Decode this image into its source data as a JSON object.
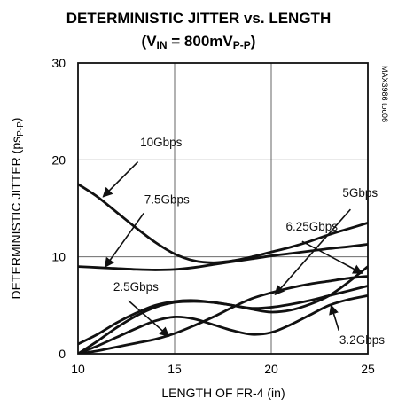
{
  "chart_data": {
    "type": "line",
    "title": "DETERMINISTIC JITTER vs. LENGTH",
    "subtitle": {
      "pre": "(V",
      "sub1": "IN",
      "mid": " = 800mV",
      "sub2": "P-P",
      "post": ")"
    },
    "xlabel": "LENGTH OF FR-4 (in)",
    "ylabel": {
      "pre": "DETERMINISTIC JITTER (ps",
      "sub": "P-P",
      "post": ")"
    },
    "xlim": [
      10,
      25
    ],
    "ylim": [
      0,
      30
    ],
    "xticks": [
      10,
      15,
      20,
      25
    ],
    "yticks": [
      0,
      10,
      20,
      30
    ],
    "grid": true,
    "watermark": "MAX3986 toc06",
    "series": [
      {
        "name": "10Gbps",
        "x": [
          10,
          11,
          12,
          13,
          14,
          15,
          16,
          17,
          18,
          19,
          20,
          21,
          22,
          23,
          24,
          25
        ],
        "y": [
          17.5,
          16.2,
          14.6,
          13.0,
          11.5,
          10.3,
          9.6,
          9.4,
          9.6,
          10.0,
          10.5,
          11.0,
          11.6,
          12.3,
          12.9,
          13.5
        ]
      },
      {
        "name": "7.5Gbps",
        "x": [
          10,
          11,
          12,
          13,
          14,
          15,
          16,
          17,
          18,
          19,
          20,
          21,
          22,
          23,
          24,
          25
        ],
        "y": [
          9.0,
          8.9,
          8.8,
          8.7,
          8.65,
          8.7,
          8.9,
          9.2,
          9.5,
          9.8,
          10.1,
          10.35,
          10.6,
          10.85,
          11.05,
          11.3
        ]
      },
      {
        "name": "6.25Gbps",
        "x": [
          10,
          11,
          12,
          13,
          14,
          15,
          16,
          17,
          18,
          19,
          20,
          21,
          22,
          23,
          24,
          25
        ],
        "y": [
          1.0,
          2.0,
          3.2,
          4.2,
          5.0,
          5.4,
          5.5,
          5.3,
          5.0,
          4.6,
          4.3,
          4.5,
          5.1,
          6.0,
          7.4,
          9.0
        ]
      },
      {
        "name": "5Gbps",
        "x": [
          10,
          11,
          12,
          13,
          14,
          15,
          16,
          17,
          18,
          19,
          20,
          21,
          22,
          23,
          24,
          25
        ],
        "y": [
          0.0,
          0.3,
          0.7,
          1.1,
          1.5,
          2.1,
          2.9,
          3.8,
          4.8,
          5.7,
          6.3,
          6.8,
          7.2,
          7.5,
          7.8,
          8.0
        ]
      },
      {
        "name": "3.2Gbps",
        "x": [
          10,
          11,
          12,
          13,
          14,
          15,
          16,
          17,
          18,
          19,
          20,
          21,
          22,
          23,
          24,
          25
        ],
        "y": [
          0.0,
          0.8,
          1.7,
          2.6,
          3.4,
          3.8,
          3.6,
          3.0,
          2.4,
          2.0,
          2.2,
          3.0,
          4.0,
          5.0,
          5.6,
          6.0
        ]
      },
      {
        "name": "2.5Gbps",
        "x": [
          10,
          11,
          12,
          13,
          14,
          15,
          16,
          17,
          18,
          19,
          20,
          21,
          22,
          23,
          24,
          25
        ],
        "y": [
          0.0,
          1.3,
          2.7,
          3.9,
          4.8,
          5.3,
          5.4,
          5.3,
          5.0,
          4.7,
          4.8,
          5.1,
          5.5,
          6.0,
          6.5,
          7.0
        ]
      }
    ],
    "annotations": [
      {
        "label": "10Gbps",
        "text_x": 14.3,
        "text_y": 21.4,
        "anchor": "middle",
        "arrow_from": [
          13.1,
          19.8
        ],
        "arrow_to": [
          11.3,
          16.2
        ]
      },
      {
        "label": "7.5Gbps",
        "text_x": 14.6,
        "text_y": 15.5,
        "anchor": "middle",
        "arrow_from": [
          13.4,
          14.5
        ],
        "arrow_to": [
          11.4,
          8.95
        ]
      },
      {
        "label": "5Gbps",
        "text_x": 24.6,
        "text_y": 16.2,
        "anchor": "middle",
        "arrow_from": [
          24.1,
          14.9
        ],
        "arrow_to": [
          20.2,
          6.1
        ]
      },
      {
        "label": "6.25Gbps",
        "text_x": 22.1,
        "text_y": 12.7,
        "anchor": "middle",
        "arrow_from": [
          21.6,
          11.6
        ],
        "arrow_to": [
          24.7,
          8.3
        ]
      },
      {
        "label": "2.5Gbps",
        "text_x": 13.0,
        "text_y": 6.5,
        "anchor": "middle",
        "arrow_from": [
          12.6,
          5.5
        ],
        "arrow_to": [
          14.7,
          1.8
        ]
      },
      {
        "label": "3.2Gbps",
        "text_x": 24.7,
        "text_y": 1.0,
        "anchor": "middle",
        "arrow_from": [
          23.5,
          2.4
        ],
        "arrow_to": [
          23.1,
          5.0
        ]
      }
    ]
  }
}
